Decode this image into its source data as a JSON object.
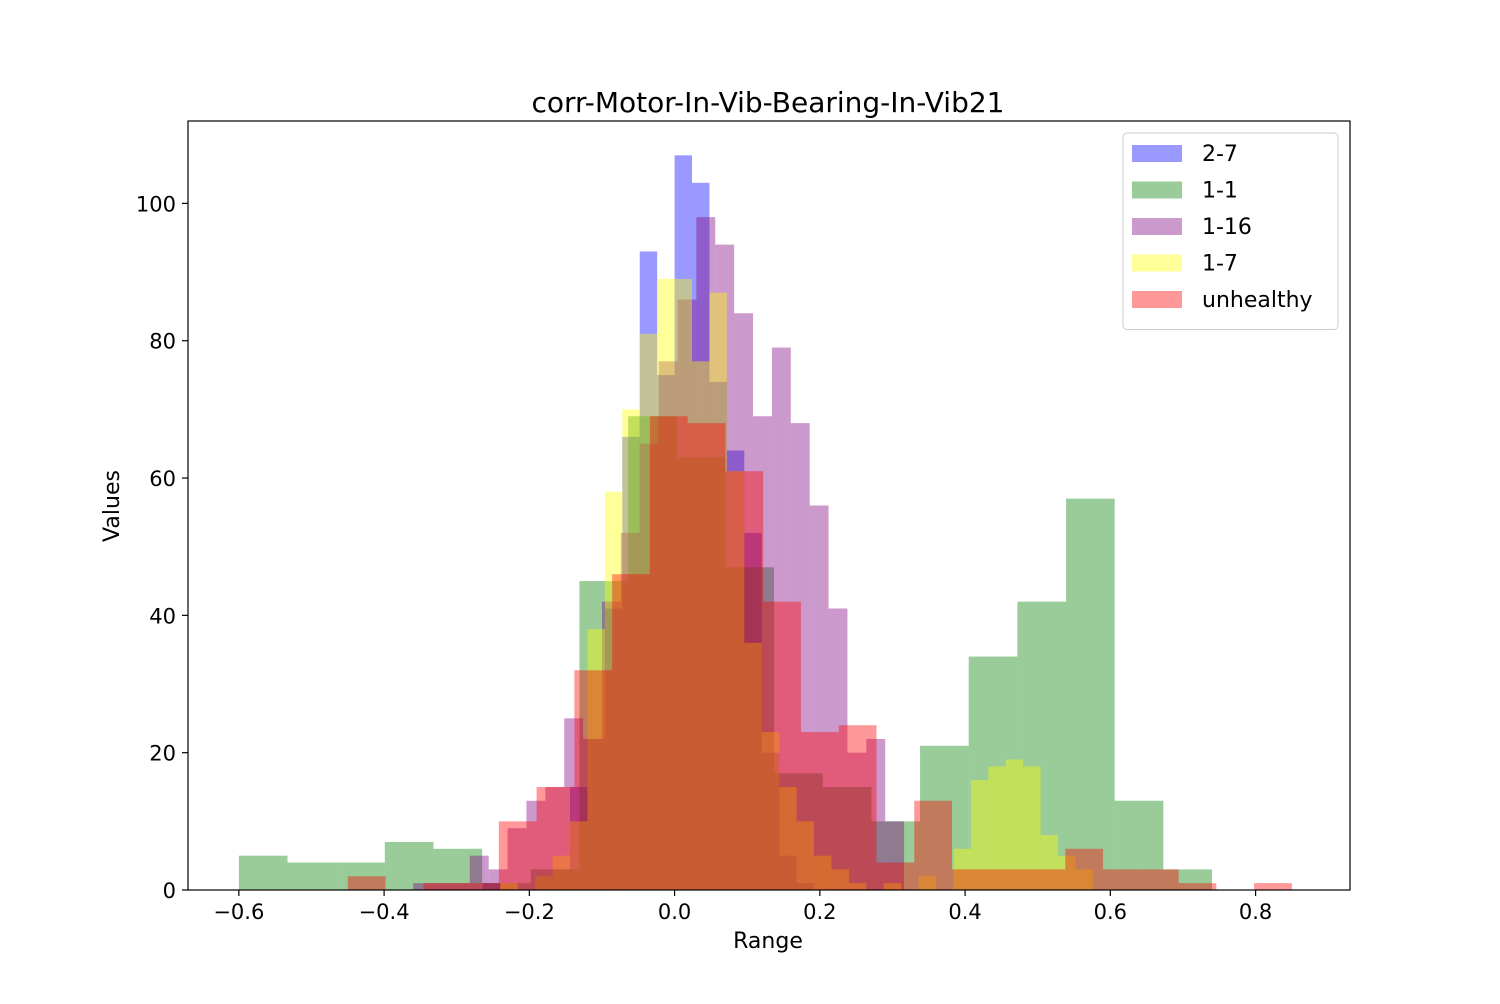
{
  "chart_data": {
    "type": "histogram",
    "title": "corr-Motor-In-Vib-Bearing-In-Vib21",
    "xlabel": "Range",
    "ylabel": "Values",
    "xlim": [
      -0.67,
      0.93
    ],
    "ylim": [
      0,
      112
    ],
    "xticks": [
      -0.6,
      -0.4,
      -0.2,
      0.0,
      0.2,
      0.4,
      0.6,
      0.8
    ],
    "xtick_labels": [
      "−0.6",
      "−0.4",
      "−0.2",
      "0.0",
      "0.2",
      "0.4",
      "0.6",
      "0.8"
    ],
    "yticks": [
      0,
      20,
      40,
      60,
      80,
      100
    ],
    "ytick_labels": [
      "0",
      "20",
      "40",
      "60",
      "80",
      "100"
    ],
    "grid": false,
    "legend_position": "top-right",
    "alpha": 0.4,
    "series": [
      {
        "name": "2-7",
        "color": "#0000ff",
        "bins": [
          [
            -0.264,
            -0.24,
            1
          ],
          [
            -0.24,
            -0.216,
            0
          ],
          [
            -0.216,
            -0.192,
            0
          ],
          [
            -0.192,
            -0.168,
            2
          ],
          [
            -0.168,
            -0.144,
            3
          ],
          [
            -0.144,
            -0.12,
            15
          ],
          [
            -0.12,
            -0.096,
            22
          ],
          [
            -0.096,
            -0.072,
            41
          ],
          [
            -0.072,
            -0.048,
            66
          ],
          [
            -0.048,
            -0.024,
            93
          ],
          [
            -0.024,
            0.0,
            75
          ],
          [
            0.0,
            0.024,
            107
          ],
          [
            0.024,
            0.048,
            103
          ],
          [
            0.048,
            0.072,
            74
          ],
          [
            0.072,
            0.096,
            64
          ],
          [
            0.096,
            0.12,
            52
          ],
          [
            0.12,
            0.144,
            20
          ],
          [
            0.144,
            0.168,
            5
          ],
          [
            0.168,
            0.192,
            1
          ]
        ]
      },
      {
        "name": "1-1",
        "color": "#008000",
        "bins": [
          [
            -0.6,
            -0.533,
            5
          ],
          [
            -0.533,
            -0.466,
            4
          ],
          [
            -0.466,
            -0.399,
            4
          ],
          [
            -0.399,
            -0.332,
            7
          ],
          [
            -0.332,
            -0.265,
            6
          ],
          [
            -0.265,
            -0.198,
            1
          ],
          [
            -0.198,
            -0.131,
            3
          ],
          [
            -0.131,
            -0.064,
            45
          ],
          [
            -0.064,
            0.003,
            69
          ],
          [
            0.003,
            0.07,
            63
          ],
          [
            0.07,
            0.137,
            47
          ],
          [
            0.137,
            0.204,
            17
          ],
          [
            0.204,
            0.271,
            15
          ],
          [
            0.271,
            0.338,
            10
          ],
          [
            0.338,
            0.405,
            21
          ],
          [
            0.405,
            0.472,
            34
          ],
          [
            0.472,
            0.539,
            42
          ],
          [
            0.539,
            0.606,
            57
          ],
          [
            0.606,
            0.673,
            13
          ],
          [
            0.673,
            0.74,
            3
          ]
        ]
      },
      {
        "name": "1-16",
        "color": "#800080",
        "bins": [
          [
            -0.36,
            -0.334,
            1
          ],
          [
            -0.334,
            -0.308,
            1
          ],
          [
            -0.308,
            -0.282,
            1
          ],
          [
            -0.282,
            -0.256,
            5
          ],
          [
            -0.256,
            -0.23,
            3
          ],
          [
            -0.23,
            -0.204,
            9
          ],
          [
            -0.204,
            -0.178,
            13
          ],
          [
            -0.178,
            -0.152,
            15
          ],
          [
            -0.152,
            -0.126,
            25
          ],
          [
            -0.126,
            -0.1,
            22
          ],
          [
            -0.1,
            -0.074,
            42
          ],
          [
            -0.074,
            -0.048,
            52
          ],
          [
            -0.048,
            -0.022,
            65
          ],
          [
            -0.022,
            0.004,
            77
          ],
          [
            0.004,
            0.03,
            86
          ],
          [
            0.03,
            0.056,
            98
          ],
          [
            0.056,
            0.082,
            94
          ],
          [
            0.082,
            0.108,
            84
          ],
          [
            0.108,
            0.134,
            69
          ],
          [
            0.134,
            0.16,
            79
          ],
          [
            0.16,
            0.186,
            68
          ],
          [
            0.186,
            0.212,
            56
          ],
          [
            0.212,
            0.238,
            41
          ],
          [
            0.238,
            0.264,
            20
          ],
          [
            0.264,
            0.29,
            22
          ],
          [
            0.29,
            0.316,
            10
          ]
        ]
      },
      {
        "name": "1-7",
        "color": "#ffff00",
        "bins": [
          [
            -0.24,
            -0.216,
            1
          ],
          [
            -0.216,
            -0.192,
            0
          ],
          [
            -0.192,
            -0.168,
            2
          ],
          [
            -0.168,
            -0.144,
            5
          ],
          [
            -0.144,
            -0.12,
            10
          ],
          [
            -0.12,
            -0.096,
            38
          ],
          [
            -0.096,
            -0.072,
            58
          ],
          [
            -0.072,
            -0.048,
            70
          ],
          [
            -0.048,
            -0.024,
            81
          ],
          [
            -0.024,
            0.0,
            89
          ],
          [
            0.0,
            0.024,
            89
          ],
          [
            0.024,
            0.048,
            77
          ],
          [
            0.048,
            0.072,
            87
          ],
          [
            0.072,
            0.096,
            61
          ],
          [
            0.096,
            0.12,
            36
          ],
          [
            0.12,
            0.144,
            23
          ],
          [
            0.144,
            0.168,
            15
          ],
          [
            0.168,
            0.192,
            10
          ],
          [
            0.192,
            0.216,
            5
          ],
          [
            0.216,
            0.24,
            3
          ],
          [
            0.24,
            0.264,
            1
          ],
          [
            0.264,
            0.288,
            0
          ],
          [
            0.288,
            0.312,
            1
          ],
          [
            0.312,
            0.336,
            0
          ],
          [
            0.336,
            0.36,
            2
          ],
          [
            0.36,
            0.384,
            0
          ],
          [
            0.384,
            0.408,
            6
          ],
          [
            0.408,
            0.432,
            16
          ],
          [
            0.432,
            0.456,
            18
          ],
          [
            0.456,
            0.48,
            19
          ],
          [
            0.48,
            0.504,
            18
          ],
          [
            0.504,
            0.528,
            8
          ],
          [
            0.528,
            0.552,
            5
          ],
          [
            0.552,
            0.576,
            3
          ]
        ]
      },
      {
        "name": "unhealthy",
        "color": "#ff0000",
        "bins": [
          [
            -0.45,
            -0.398,
            2
          ],
          [
            -0.398,
            -0.346,
            0
          ],
          [
            -0.346,
            -0.294,
            1
          ],
          [
            -0.294,
            -0.242,
            1
          ],
          [
            -0.242,
            -0.19,
            10
          ],
          [
            -0.19,
            -0.138,
            15
          ],
          [
            -0.138,
            -0.086,
            32
          ],
          [
            -0.086,
            -0.034,
            46
          ],
          [
            -0.034,
            0.018,
            69
          ],
          [
            0.018,
            0.07,
            68
          ],
          [
            0.07,
            0.122,
            61
          ],
          [
            0.122,
            0.174,
            42
          ],
          [
            0.174,
            0.226,
            23
          ],
          [
            0.226,
            0.278,
            24
          ],
          [
            0.278,
            0.33,
            4
          ],
          [
            0.33,
            0.382,
            13
          ],
          [
            0.382,
            0.434,
            3
          ],
          [
            0.434,
            0.486,
            3
          ],
          [
            0.486,
            0.538,
            3
          ],
          [
            0.538,
            0.59,
            6
          ],
          [
            0.59,
            0.642,
            3
          ],
          [
            0.642,
            0.694,
            3
          ],
          [
            0.694,
            0.746,
            1
          ],
          [
            0.746,
            0.798,
            0
          ],
          [
            0.798,
            0.85,
            1
          ]
        ]
      }
    ]
  }
}
